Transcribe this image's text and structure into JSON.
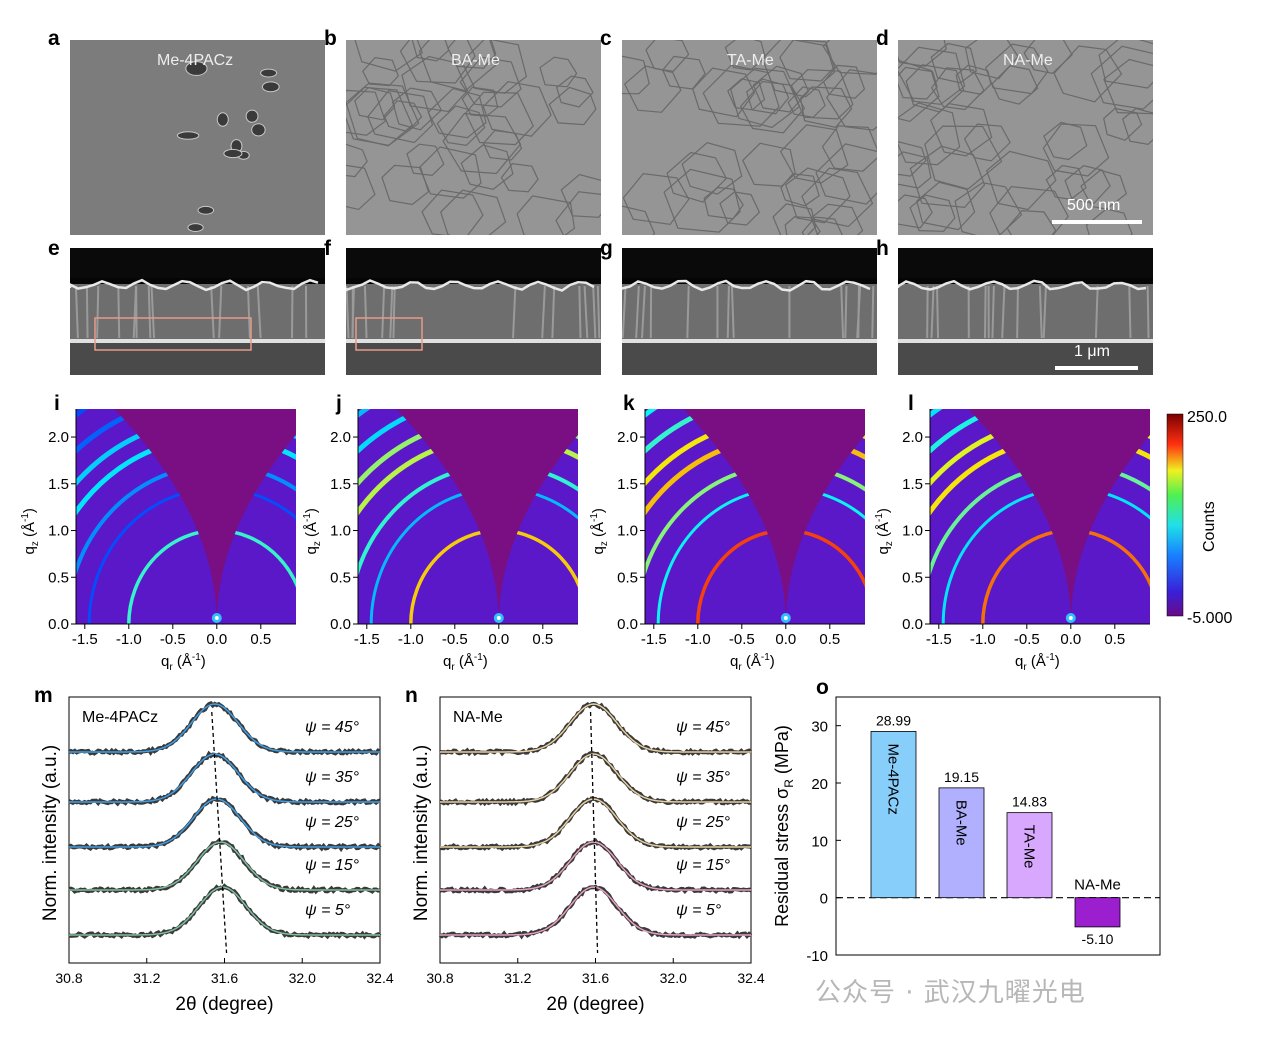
{
  "panels": {
    "sem_top": [
      {
        "letter": "a",
        "label": "Me-4PACz"
      },
      {
        "letter": "b",
        "label": "BA-Me"
      },
      {
        "letter": "c",
        "label": "TA-Me"
      },
      {
        "letter": "d",
        "label": "NA-Me"
      }
    ],
    "sem_top_scalebar": "500 nm",
    "sem_cross": [
      {
        "letter": "e"
      },
      {
        "letter": "f"
      },
      {
        "letter": "g"
      },
      {
        "letter": "h"
      }
    ],
    "sem_cross_scalebar": "1 μm",
    "giwaxs": [
      {
        "letter": "i"
      },
      {
        "letter": "j"
      },
      {
        "letter": "k"
      },
      {
        "letter": "l"
      }
    ],
    "giwaxs_axes": {
      "xlabel_main": "q",
      "xlabel_sub": "r",
      "xlabel_unit": " (Å",
      "ylabel_main": "q",
      "ylabel_sub": "z",
      "ylabel_unit": " (Å",
      "xticks": [
        "-1.5",
        "-1.0",
        "-0.5",
        "0.0",
        "0.5"
      ],
      "yticks": [
        "0.0",
        "0.5",
        "1.0",
        "1.5",
        "2.0"
      ]
    },
    "colorbar": {
      "max": "250.0",
      "min": "-5.000",
      "label": "Counts"
    },
    "xrd_m": {
      "letter": "m",
      "sample": "Me-4PACz"
    },
    "xrd_n": {
      "letter": "n",
      "sample": "NA-Me"
    },
    "xrd_axes": {
      "xlabel": "2θ (degree)",
      "ylabel": "Norm. intensity (a.u.)",
      "xticks": [
        "30.8",
        "31.2",
        "31.6",
        "32.0",
        "32.4"
      ]
    },
    "stress": {
      "letter": "o"
    }
  },
  "chart_data": [
    {
      "type": "heatmap",
      "panel": "i-l",
      "description_source": "GIWAXS 2D patterns",
      "xlim": [
        -1.6,
        0.9
      ],
      "ylim": [
        0,
        2.3
      ],
      "color_range": [
        -5.0,
        250.0
      ]
    },
    {
      "type": "line",
      "panel": "m",
      "xlim": [
        30.8,
        32.4
      ],
      "series": [
        {
          "name": "ψ = 45°",
          "peak": 31.55,
          "color": "#3fa0e8"
        },
        {
          "name": "ψ = 35°",
          "peak": 31.55,
          "color": "#3fa0e8"
        },
        {
          "name": "ψ = 25°",
          "peak": 31.56,
          "color": "#3fa0e8"
        },
        {
          "name": "ψ = 15°",
          "peak": 31.58,
          "color": "#7fbfa0"
        },
        {
          "name": "ψ = 5°",
          "peak": 31.59,
          "color": "#7fbfa0"
        }
      ]
    },
    {
      "type": "line",
      "panel": "n",
      "xlim": [
        30.8,
        32.4
      ],
      "series": [
        {
          "name": "ψ = 45°",
          "peak": 31.59,
          "color": "#e8d0a0"
        },
        {
          "name": "ψ = 35°",
          "peak": 31.59,
          "color": "#e8d0a0"
        },
        {
          "name": "ψ = 25°",
          "peak": 31.59,
          "color": "#e8d0a0"
        },
        {
          "name": "ψ = 15°",
          "peak": 31.59,
          "color": "#e8a0c0"
        },
        {
          "name": "ψ = 5°",
          "peak": 31.59,
          "color": "#e8a0c0"
        }
      ]
    },
    {
      "type": "bar",
      "panel": "o",
      "categories": [
        "Me-4PACz",
        "BA-Me",
        "TA-Me",
        "NA-Me"
      ],
      "values": [
        28.99,
        19.15,
        14.83,
        -5.1
      ],
      "value_labels": [
        "28.99",
        "19.15",
        "14.83",
        "-5.10"
      ],
      "colors": [
        "#87cefa",
        "#b0b0ff",
        "#d8a8ff",
        "#9b1fcf"
      ],
      "ylabel": "Residual stress σ",
      "ylabel_sub": "R",
      "ylabel_unit": " (MPa)",
      "ylim": [
        -10,
        35
      ],
      "yticks": [
        "-10",
        "0",
        "10",
        "20",
        "30"
      ]
    }
  ],
  "watermark": "公众号 · 武汉九曜光电"
}
